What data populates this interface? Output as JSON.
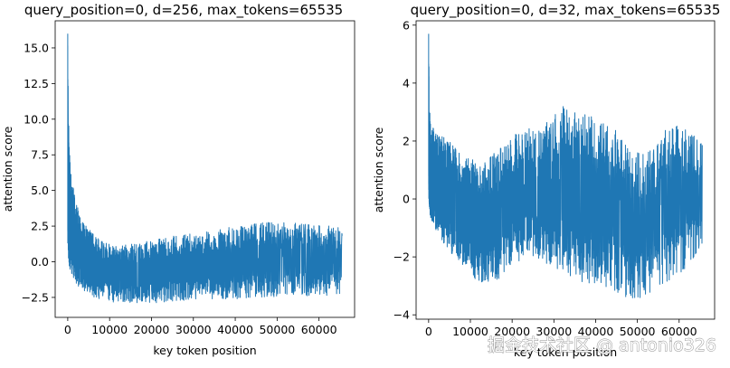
{
  "chart_data": [
    {
      "type": "line",
      "title": "query_position=0, d=256, max_tokens=65535",
      "xlabel": "key token position",
      "ylabel": "attention score",
      "xlim": [
        -3000,
        68500
      ],
      "ylim": [
        -3.9,
        16.9
      ],
      "xticks": [
        0,
        10000,
        20000,
        30000,
        40000,
        50000,
        60000
      ],
      "xtick_labels": [
        "0",
        "10000",
        "20000",
        "30000",
        "40000",
        "50000",
        "60000"
      ],
      "yticks": [
        -2.5,
        0.0,
        2.5,
        5.0,
        7.5,
        10.0,
        12.5,
        15.0
      ],
      "ytick_labels": [
        "−2.5",
        "0.0",
        "2.5",
        "5.0",
        "7.5",
        "10.0",
        "12.5",
        "15.0"
      ],
      "color": "#1f77b4",
      "series": [
        {
          "name": "attention score",
          "x": [
            0,
            200,
            500,
            1000,
            2000,
            3000,
            5000,
            7000,
            10000,
            13000,
            16000,
            20000,
            25000,
            30000,
            35000,
            40000,
            45000,
            50000,
            55000,
            60000,
            65535
          ],
          "upper": [
            16.0,
            10.5,
            7.5,
            5.8,
            4.2,
            3.2,
            2.3,
            1.7,
            1.3,
            1.2,
            1.3,
            1.5,
            1.8,
            2.0,
            2.2,
            2.5,
            2.7,
            2.8,
            2.7,
            2.6,
            2.4
          ],
          "lower": [
            0.5,
            0.0,
            -0.5,
            -0.9,
            -1.5,
            -1.9,
            -2.3,
            -2.6,
            -2.8,
            -2.9,
            -2.9,
            -2.9,
            -2.8,
            -2.7,
            -2.6,
            -2.6,
            -2.5,
            -2.5,
            -2.4,
            -2.4,
            -2.3
          ]
        }
      ]
    },
    {
      "type": "line",
      "title": "query_position=0, d=32, max_tokens=65535",
      "xlabel": "key token position",
      "ylabel": "attention score",
      "xlim": [
        -3000,
        68500
      ],
      "ylim": [
        -4.15,
        6.15
      ],
      "xticks": [
        0,
        10000,
        20000,
        30000,
        40000,
        50000,
        60000
      ],
      "xtick_labels": [
        "0",
        "10000",
        "20000",
        "30000",
        "40000",
        "50000",
        "60000"
      ],
      "yticks": [
        -4,
        -2,
        0,
        2,
        4,
        6
      ],
      "ytick_labels": [
        "−4",
        "−2",
        "0",
        "2",
        "4",
        "6"
      ],
      "color": "#1f77b4",
      "series": [
        {
          "name": "attention score",
          "x": [
            0,
            200,
            500,
            1000,
            2000,
            5000,
            8000,
            12000,
            16000,
            20000,
            24000,
            28000,
            32000,
            36000,
            40000,
            44000,
            48000,
            52000,
            56000,
            60000,
            63000,
            65535
          ],
          "upper": [
            5.7,
            3.1,
            2.7,
            2.5,
            2.3,
            2.0,
            1.5,
            1.3,
            1.6,
            2.3,
            2.5,
            2.6,
            3.2,
            3.0,
            2.8,
            2.6,
            1.7,
            1.6,
            2.4,
            2.6,
            2.3,
            1.9
          ],
          "lower": [
            0.0,
            -0.5,
            -0.7,
            -0.9,
            -1.2,
            -1.8,
            -2.3,
            -2.9,
            -2.9,
            -2.3,
            -2.0,
            -2.2,
            -2.6,
            -2.9,
            -3.0,
            -3.1,
            -3.5,
            -3.4,
            -3.0,
            -2.6,
            -2.2,
            -1.6
          ]
        }
      ]
    }
  ],
  "watermark": "掘金技术社区 @ antonio326"
}
